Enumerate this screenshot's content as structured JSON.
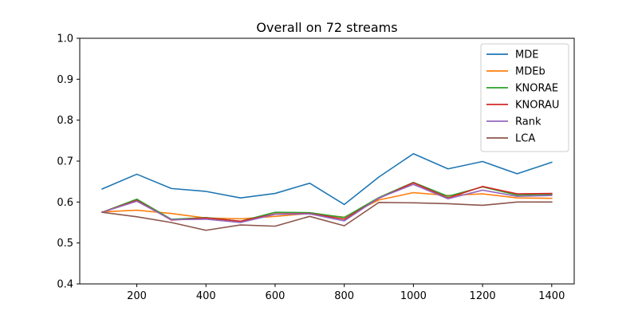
{
  "chart_data": {
    "type": "line",
    "title": "Overall on 72 streams",
    "xlabel": "",
    "ylabel": "",
    "xlim": [
      35,
      1465
    ],
    "ylim": [
      0.4,
      1.0
    ],
    "x_ticks": [
      200,
      400,
      600,
      800,
      1000,
      1200,
      1400
    ],
    "y_ticks": [
      0.4,
      0.5,
      0.6,
      0.7,
      0.8,
      0.9,
      1.0
    ],
    "x": [
      100,
      200,
      300,
      400,
      500,
      600,
      700,
      800,
      900,
      1000,
      1100,
      1200,
      1300,
      1400
    ],
    "legend_position": "top-right",
    "grid": false,
    "series": [
      {
        "name": "MDE",
        "color": "#1f77b4",
        "values": [
          0.632,
          0.668,
          0.633,
          0.626,
          0.61,
          0.621,
          0.646,
          0.594,
          0.661,
          0.718,
          0.681,
          0.699,
          0.669,
          0.697
        ]
      },
      {
        "name": "MDEb",
        "color": "#ff7f0e",
        "values": [
          0.576,
          0.58,
          0.572,
          0.561,
          0.559,
          0.565,
          0.572,
          0.563,
          0.605,
          0.623,
          0.616,
          0.62,
          0.61,
          0.609
        ]
      },
      {
        "name": "KNORAE",
        "color": "#2ca02c",
        "values": [
          0.575,
          0.607,
          0.558,
          0.562,
          0.553,
          0.575,
          0.574,
          0.562,
          0.611,
          0.648,
          0.614,
          0.637,
          0.617,
          0.619
        ]
      },
      {
        "name": "KNORAU",
        "color": "#d62728",
        "values": [
          0.575,
          0.604,
          0.556,
          0.561,
          0.553,
          0.571,
          0.572,
          0.558,
          0.609,
          0.647,
          0.61,
          0.638,
          0.62,
          0.621
        ]
      },
      {
        "name": "Rank",
        "color": "#9467bd",
        "values": [
          0.575,
          0.602,
          0.557,
          0.558,
          0.55,
          0.57,
          0.571,
          0.554,
          0.61,
          0.643,
          0.608,
          0.629,
          0.614,
          0.616
        ]
      },
      {
        "name": "LCA",
        "color": "#8c564b",
        "values": [
          0.575,
          0.564,
          0.55,
          0.531,
          0.544,
          0.541,
          0.565,
          0.542,
          0.599,
          0.598,
          0.596,
          0.592,
          0.6,
          0.6
        ]
      }
    ]
  }
}
